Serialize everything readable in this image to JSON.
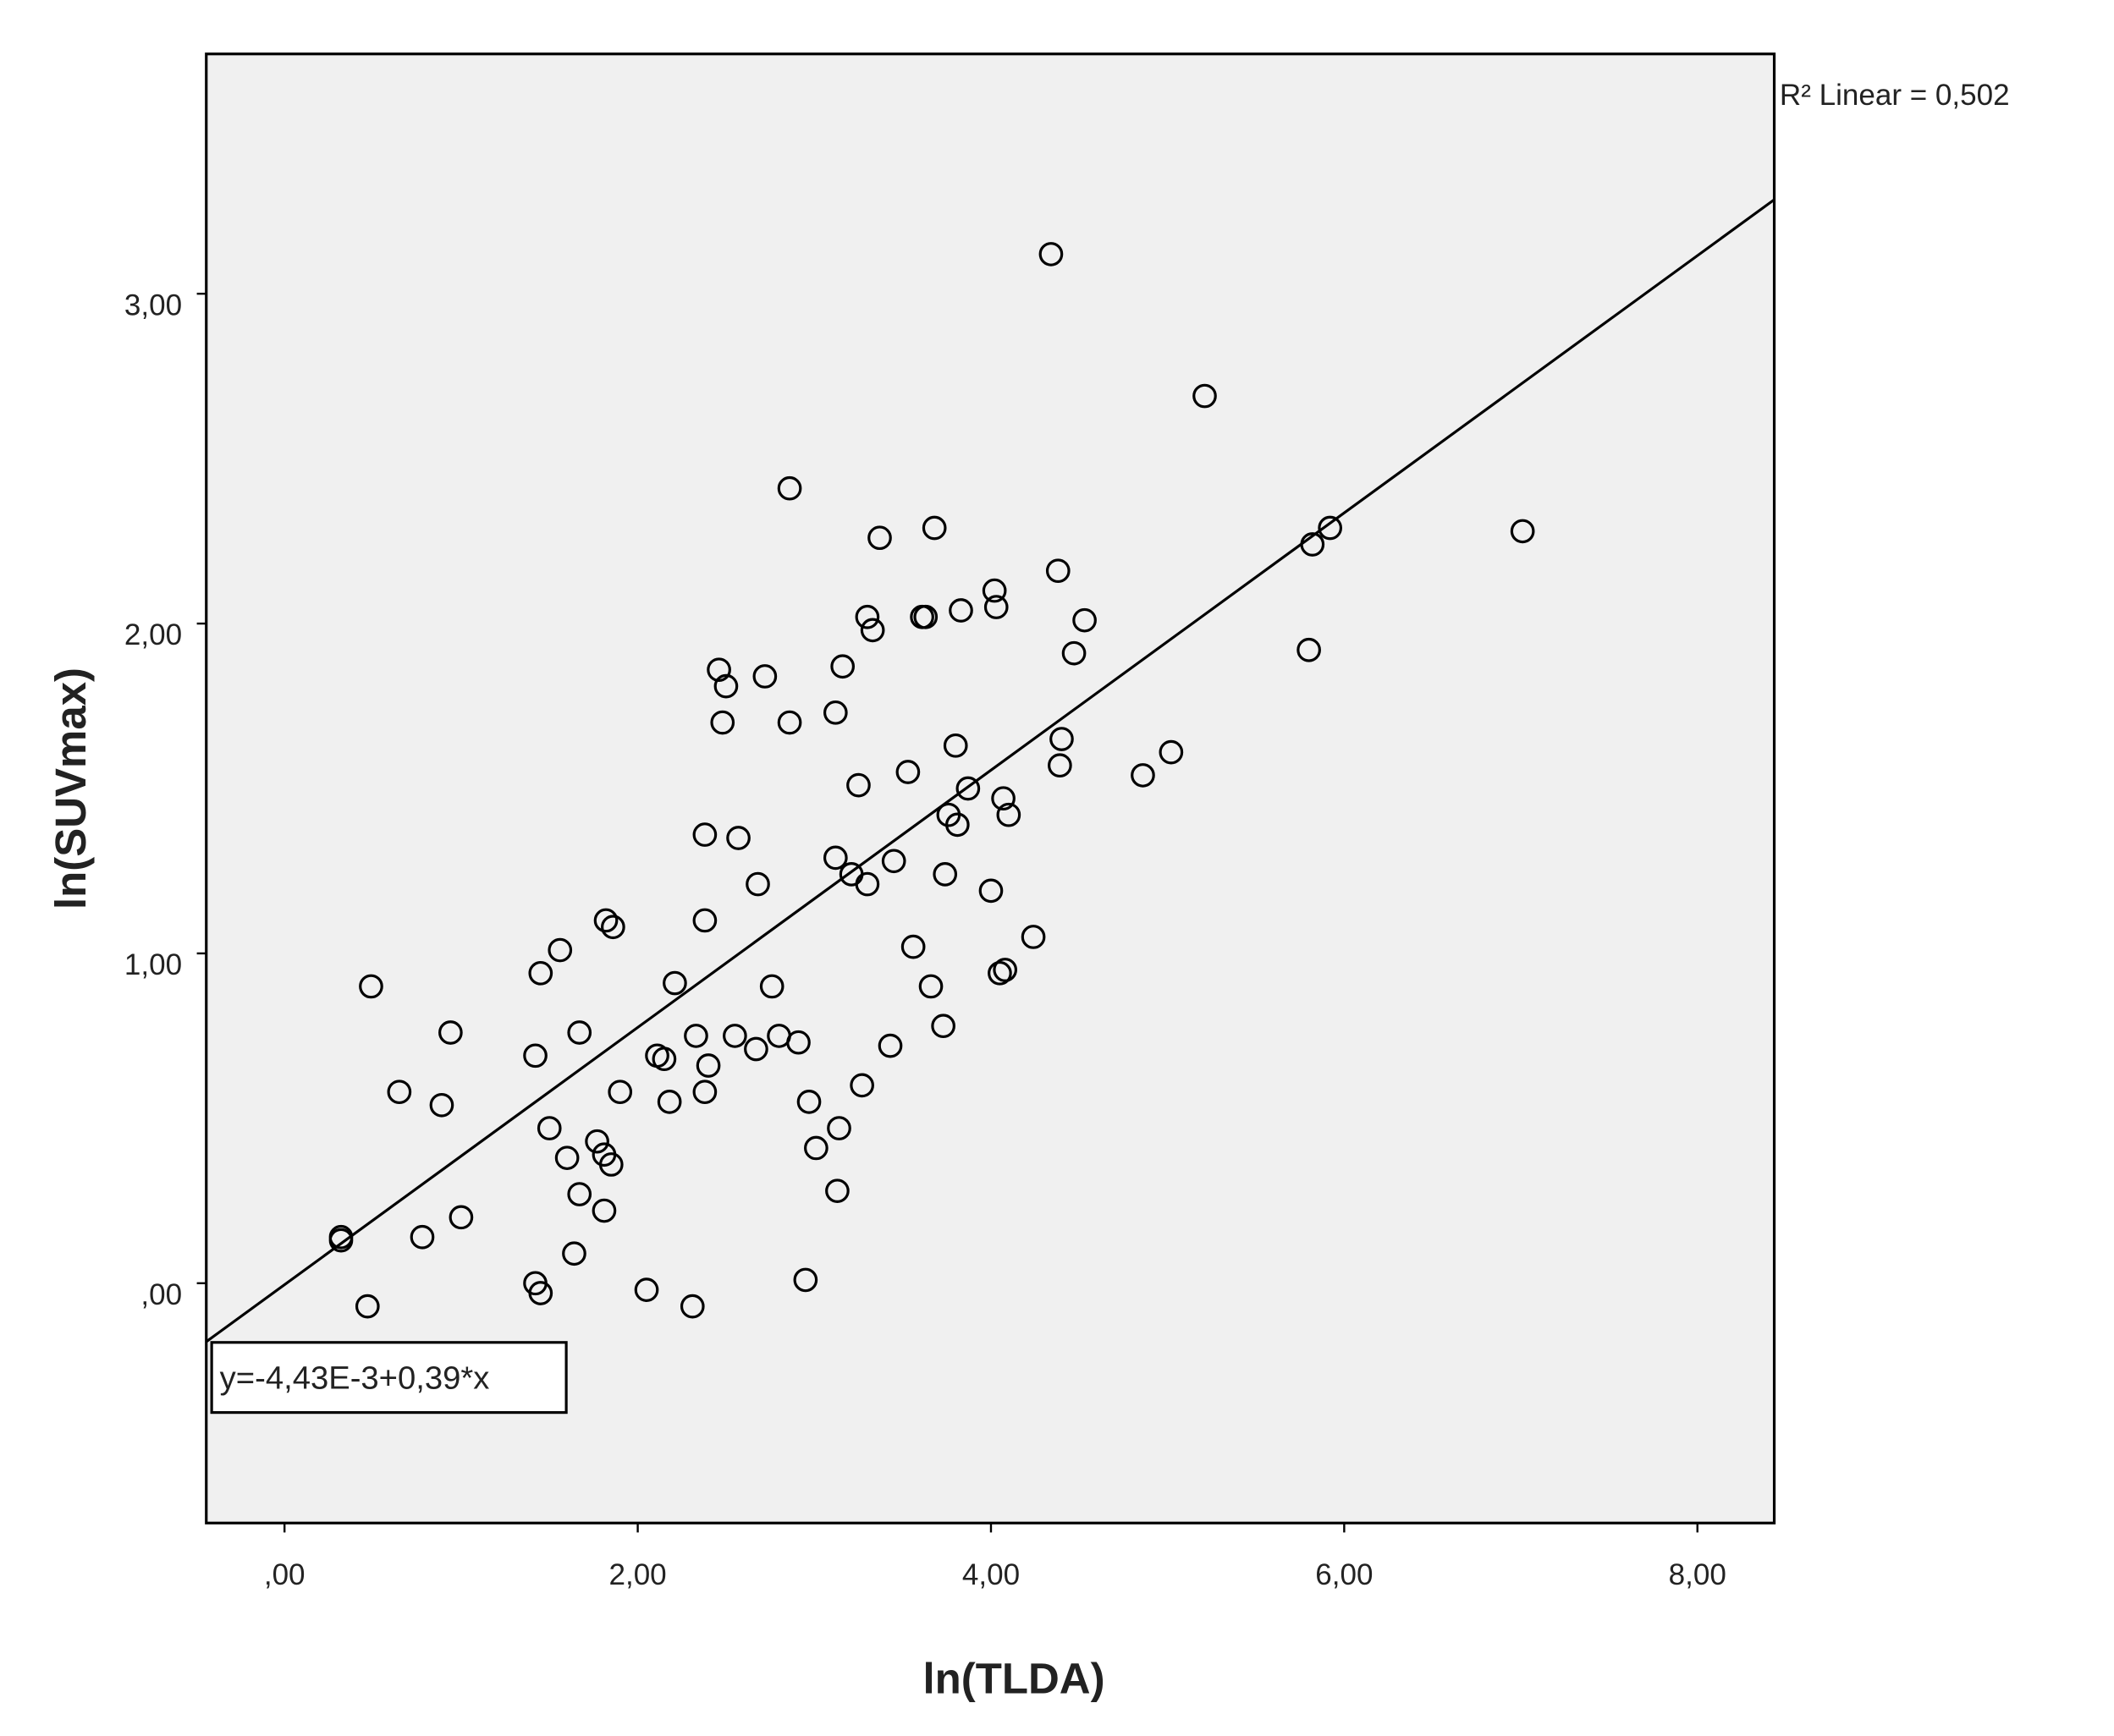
{
  "chart_data": {
    "type": "scatter",
    "x_label": "ln(TLDA)",
    "y_label": "ln(SUVmax)",
    "annotation": "R² Linear = 0,502",
    "equation": "y=-4,43E-3+0,39*x",
    "fit": {
      "intercept": -0.00443,
      "slope": 0.39
    },
    "xlim": [
      -0.443,
      8.435
    ],
    "ylim": [
      -0.727,
      3.727
    ],
    "xticks": [
      {
        "value": 0,
        "label": ",00"
      },
      {
        "value": 2,
        "label": "2,00"
      },
      {
        "value": 4,
        "label": "4,00"
      },
      {
        "value": 6,
        "label": "6,00"
      },
      {
        "value": 8,
        "label": "8,00"
      }
    ],
    "yticks": [
      {
        "value": 0,
        "label": ",00"
      },
      {
        "value": 1,
        "label": "1,00"
      },
      {
        "value": 2,
        "label": "2,00"
      },
      {
        "value": 3,
        "label": "3,00"
      }
    ],
    "color": "#000000",
    "background": "#f0f0f0",
    "x": [
      0.32,
      0.32,
      0.49,
      0.47,
      0.65,
      0.78,
      0.89,
      0.94,
      1.0,
      1.42,
      1.42,
      1.45,
      1.45,
      1.56,
      1.5,
      1.6,
      1.64,
      1.67,
      1.67,
      1.77,
      1.81,
      1.85,
      1.81,
      1.82,
      1.86,
      1.9,
      2.05,
      2.11,
      2.15,
      2.18,
      2.21,
      2.31,
      2.33,
      2.38,
      2.4,
      2.38,
      2.38,
      2.46,
      2.5,
      2.48,
      2.55,
      2.57,
      2.67,
      2.68,
      2.72,
      2.76,
      2.8,
      2.86,
      2.86,
      2.91,
      2.95,
      2.97,
      3.01,
      3.12,
      3.12,
      3.14,
      3.13,
      3.16,
      3.21,
      3.25,
      3.27,
      3.3,
      3.3,
      3.33,
      3.37,
      3.43,
      3.45,
      3.53,
      3.56,
      3.61,
      3.63,
      3.66,
      3.68,
      3.73,
      3.74,
      3.76,
      3.8,
      3.81,
      3.83,
      3.87,
      4.0,
      4.02,
      4.03,
      4.05,
      4.08,
      4.07,
      4.1,
      4.24,
      4.34,
      4.38,
      4.39,
      4.4,
      4.47,
      4.53,
      4.86,
      5.02,
      5.21,
      5.8,
      5.82,
      5.92,
      7.01
    ],
    "y": [
      0.14,
      0.13,
      0.9,
      -0.07,
      0.58,
      0.14,
      0.54,
      0.76,
      0.2,
      0.69,
      0.0,
      -0.03,
      0.94,
      1.01,
      0.47,
      0.38,
      0.09,
      0.76,
      0.27,
      0.43,
      0.39,
      0.36,
      0.22,
      1.1,
      1.08,
      0.58,
      -0.02,
      0.69,
      0.68,
      0.55,
      0.91,
      -0.07,
      0.75,
      1.1,
      0.66,
      0.58,
      1.36,
      1.86,
      1.81,
      1.7,
      0.75,
      1.35,
      0.71,
      1.21,
      1.84,
      0.9,
      0.75,
      1.7,
      2.41,
      0.73,
      0.01,
      0.55,
      0.41,
      1.73,
      1.29,
      0.47,
      0.28,
      1.87,
      1.24,
      1.51,
      0.6,
      2.02,
      1.21,
      1.98,
      2.26,
      0.72,
      1.28,
      1.55,
      1.02,
      2.02,
      2.02,
      0.9,
      2.29,
      0.78,
      1.24,
      1.42,
      1.63,
      1.39,
      2.04,
      1.5,
      1.19,
      2.1,
      2.05,
      0.94,
      0.95,
      1.47,
      1.42,
      1.05,
      3.12,
      2.16,
      1.57,
      1.65,
      1.91,
      2.01,
      1.54,
      1.61,
      2.69,
      1.92,
      2.24,
      2.29,
      2.28
    ]
  }
}
